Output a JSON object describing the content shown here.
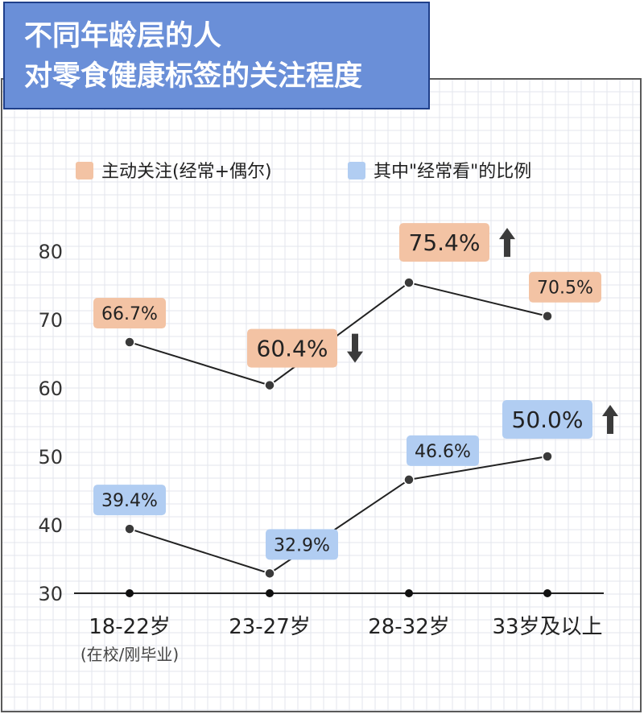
{
  "title_lines": [
    "不同年龄层的人",
    "对零食健康标签的关注程度"
  ],
  "colors": {
    "title_bg": "#6a8fd8",
    "title_border": "#1f3f8a",
    "grid": "#e3e6ec",
    "series_active": "#f3c3a4",
    "series_frequent": "#b1cdf2",
    "line": "#222222",
    "arrow": "#3b3b3b"
  },
  "chart_data": {
    "type": "line",
    "categories": [
      "18-22岁",
      "23-27岁",
      "28-32岁",
      "33岁及以上"
    ],
    "category_sublabels": [
      "(在校/刚毕业)",
      "",
      "",
      ""
    ],
    "ylim": [
      30,
      80
    ],
    "yticks": [
      30,
      40,
      50,
      60,
      70,
      80
    ],
    "grid": true,
    "legend_position": "top-left",
    "series": [
      {
        "name": "主动关注(经常+偶尔)",
        "values": [
          66.7,
          60.4,
          75.4,
          70.5
        ],
        "labels": [
          "66.7%",
          "60.4%",
          "75.4%",
          "70.5%"
        ],
        "color": "#f3c3a4",
        "arrows": [
          "",
          "down",
          "up",
          ""
        ]
      },
      {
        "name": "其中\"经常看\"的比例",
        "values": [
          39.4,
          32.9,
          46.6,
          50.0
        ],
        "labels": [
          "39.4%",
          "32.9%",
          "46.6%",
          "50.0%"
        ],
        "color": "#b1cdf2",
        "arrows": [
          "",
          "",
          "",
          "up"
        ]
      }
    ]
  }
}
